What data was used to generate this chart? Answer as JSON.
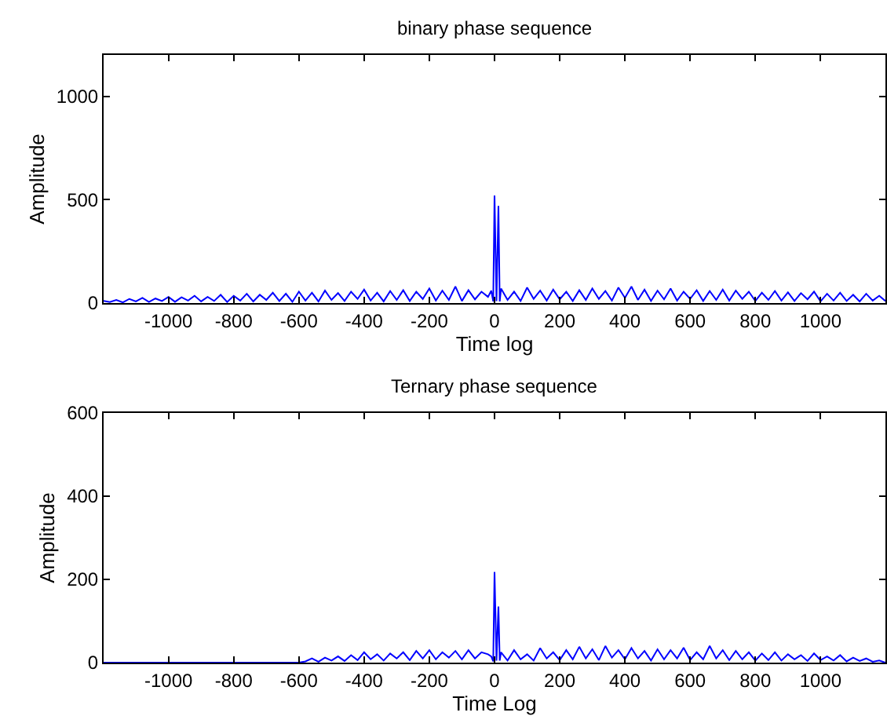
{
  "chart_data": [
    {
      "type": "line",
      "title": "binary phase sequence",
      "xlabel": "Time log",
      "ylabel": "Amplitude",
      "xlim": [
        -1199,
        1199
      ],
      "ylim": [
        0,
        1200
      ],
      "xticks": [
        -1000,
        -800,
        -600,
        -400,
        -200,
        0,
        200,
        400,
        600,
        800,
        1000
      ],
      "yticks": [
        0,
        500,
        1000
      ],
      "marker": "none",
      "line_style": "solid",
      "series": [
        {
          "color": "#0000ff",
          "x": [
            -1199,
            -1180,
            -1160,
            -1140,
            -1120,
            -1100,
            -1080,
            -1060,
            -1040,
            -1020,
            -1000,
            -980,
            -960,
            -940,
            -920,
            -900,
            -880,
            -860,
            -840,
            -820,
            -800,
            -780,
            -760,
            -740,
            -720,
            -700,
            -680,
            -660,
            -640,
            -620,
            -600,
            -580,
            -560,
            -540,
            -520,
            -500,
            -480,
            -460,
            -440,
            -420,
            -400,
            -380,
            -360,
            -340,
            -320,
            -300,
            -280,
            -260,
            -240,
            -220,
            -200,
            -180,
            -160,
            -140,
            -120,
            -100,
            -80,
            -60,
            -40,
            -20,
            -10,
            -4,
            0,
            6,
            12,
            16,
            20,
            40,
            60,
            80,
            100,
            120,
            140,
            160,
            180,
            200,
            220,
            240,
            260,
            280,
            300,
            320,
            340,
            360,
            380,
            400,
            420,
            440,
            460,
            480,
            500,
            520,
            540,
            560,
            580,
            600,
            620,
            640,
            660,
            680,
            700,
            720,
            740,
            760,
            780,
            800,
            820,
            840,
            860,
            880,
            900,
            920,
            940,
            960,
            980,
            1000,
            1020,
            1040,
            1060,
            1080,
            1100,
            1120,
            1140,
            1160,
            1180,
            1199
          ],
          "values": [
            10,
            5,
            15,
            3,
            20,
            8,
            25,
            5,
            22,
            10,
            30,
            6,
            28,
            12,
            35,
            8,
            30,
            10,
            40,
            5,
            35,
            12,
            45,
            8,
            40,
            15,
            50,
            10,
            45,
            6,
            55,
            12,
            50,
            8,
            60,
            15,
            48,
            10,
            55,
            20,
            65,
            12,
            50,
            8,
            58,
            15,
            62,
            10,
            55,
            20,
            70,
            12,
            60,
            15,
            80,
            10,
            62,
            18,
            55,
            30,
            60,
            8,
            520,
            10,
            470,
            8,
            70,
            15,
            55,
            10,
            75,
            20,
            60,
            12,
            65,
            18,
            55,
            10,
            62,
            15,
            70,
            20,
            58,
            12,
            75,
            25,
            80,
            15,
            65,
            10,
            60,
            18,
            70,
            12,
            55,
            20,
            62,
            10,
            58,
            15,
            65,
            12,
            60,
            20,
            55,
            10,
            50,
            15,
            58,
            12,
            52,
            10,
            48,
            18,
            55,
            8,
            45,
            12,
            50,
            10,
            40,
            8,
            45,
            12,
            35,
            10
          ]
        }
      ]
    },
    {
      "type": "line",
      "title": "Ternary phase sequence",
      "xlabel": "Time Log",
      "ylabel": "Amplitude",
      "xlim": [
        -1199,
        1199
      ],
      "ylim": [
        0,
        600
      ],
      "xticks": [
        -1000,
        -800,
        -600,
        -400,
        -200,
        0,
        200,
        400,
        600,
        800,
        1000
      ],
      "yticks": [
        0,
        200,
        400,
        600
      ],
      "marker": "none",
      "line_style": "solid",
      "series": [
        {
          "color": "#0000ff",
          "x": [
            -1199,
            -600,
            -580,
            -560,
            -540,
            -520,
            -500,
            -480,
            -460,
            -440,
            -420,
            -400,
            -380,
            -360,
            -340,
            -320,
            -300,
            -280,
            -260,
            -240,
            -220,
            -200,
            -180,
            -160,
            -140,
            -120,
            -100,
            -80,
            -60,
            -40,
            -20,
            -10,
            -4,
            0,
            6,
            12,
            16,
            20,
            40,
            60,
            80,
            100,
            120,
            140,
            160,
            180,
            200,
            220,
            240,
            260,
            280,
            300,
            320,
            340,
            360,
            380,
            400,
            420,
            440,
            460,
            480,
            500,
            520,
            540,
            560,
            580,
            600,
            620,
            640,
            660,
            680,
            700,
            720,
            740,
            760,
            780,
            800,
            820,
            840,
            860,
            880,
            900,
            920,
            940,
            960,
            980,
            1000,
            1020,
            1040,
            1060,
            1080,
            1100,
            1120,
            1140,
            1160,
            1180,
            1199
          ],
          "values": [
            0,
            0,
            3,
            10,
            2,
            12,
            5,
            15,
            4,
            18,
            6,
            25,
            8,
            20,
            5,
            22,
            10,
            25,
            6,
            28,
            10,
            30,
            8,
            25,
            12,
            28,
            8,
            30,
            10,
            25,
            20,
            15,
            3,
            218,
            5,
            135,
            5,
            25,
            5,
            30,
            8,
            20,
            5,
            35,
            10,
            25,
            6,
            30,
            8,
            38,
            10,
            32,
            6,
            40,
            12,
            30,
            8,
            35,
            10,
            28,
            5,
            32,
            8,
            30,
            10,
            36,
            6,
            25,
            8,
            40,
            10,
            30,
            6,
            28,
            8,
            25,
            5,
            22,
            6,
            25,
            5,
            20,
            8,
            18,
            4,
            22,
            6,
            15,
            5,
            18,
            3,
            12,
            4,
            10,
            2,
            5,
            0
          ]
        }
      ]
    }
  ]
}
